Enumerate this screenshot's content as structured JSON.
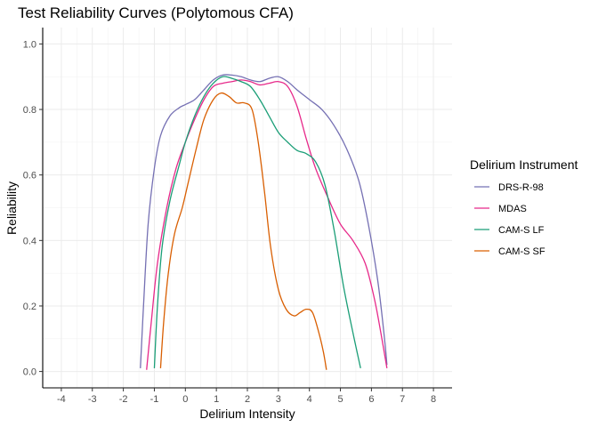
{
  "chart_data": {
    "type": "line",
    "title": "Test Reliability Curves (Polytomous CFA)",
    "xlabel": "Delirium Intensity",
    "ylabel": "Reliability",
    "xlim": [
      -4.6,
      8.6
    ],
    "ylim": [
      -0.05,
      1.05
    ],
    "xticks": [
      -4,
      -3,
      -2,
      -1,
      0,
      1,
      2,
      3,
      4,
      5,
      6,
      7,
      8
    ],
    "yticks": [
      0.0,
      0.2,
      0.4,
      0.6,
      0.8,
      1.0
    ],
    "xtick_labels": [
      "-4",
      "-3",
      "-2",
      "-1",
      "0",
      "1",
      "2",
      "3",
      "4",
      "5",
      "6",
      "7",
      "8"
    ],
    "ytick_labels": [
      "0.0",
      "0.2",
      "0.4",
      "0.6",
      "0.8",
      "1.0"
    ],
    "grid": true,
    "legend": {
      "title": "Delirium Instrument",
      "position": "right"
    },
    "series": [
      {
        "name": "DRS-R-98",
        "color": "#7570B3",
        "points": [
          [
            -1.45,
            0.01
          ],
          [
            -1.35,
            0.2
          ],
          [
            -1.2,
            0.45
          ],
          [
            -1.0,
            0.62
          ],
          [
            -0.8,
            0.72
          ],
          [
            -0.5,
            0.78
          ],
          [
            -0.2,
            0.805
          ],
          [
            0.0,
            0.815
          ],
          [
            0.3,
            0.83
          ],
          [
            0.6,
            0.86
          ],
          [
            0.9,
            0.89
          ],
          [
            1.2,
            0.905
          ],
          [
            1.5,
            0.905
          ],
          [
            1.8,
            0.9
          ],
          [
            2.1,
            0.89
          ],
          [
            2.4,
            0.885
          ],
          [
            2.7,
            0.895
          ],
          [
            3.0,
            0.9
          ],
          [
            3.3,
            0.885
          ],
          [
            3.6,
            0.86
          ],
          [
            4.0,
            0.83
          ],
          [
            4.4,
            0.8
          ],
          [
            4.8,
            0.75
          ],
          [
            5.2,
            0.68
          ],
          [
            5.6,
            0.58
          ],
          [
            5.9,
            0.45
          ],
          [
            6.2,
            0.28
          ],
          [
            6.4,
            0.12
          ],
          [
            6.5,
            0.02
          ]
        ]
      },
      {
        "name": "MDAS",
        "color": "#E7298A",
        "points": [
          [
            -1.25,
            0.005
          ],
          [
            -1.1,
            0.15
          ],
          [
            -0.9,
            0.33
          ],
          [
            -0.6,
            0.5
          ],
          [
            -0.3,
            0.62
          ],
          [
            0.0,
            0.7
          ],
          [
            0.3,
            0.77
          ],
          [
            0.6,
            0.83
          ],
          [
            0.9,
            0.87
          ],
          [
            1.2,
            0.88
          ],
          [
            1.5,
            0.885
          ],
          [
            1.8,
            0.89
          ],
          [
            2.1,
            0.885
          ],
          [
            2.4,
            0.875
          ],
          [
            2.7,
            0.88
          ],
          [
            3.0,
            0.885
          ],
          [
            3.3,
            0.87
          ],
          [
            3.6,
            0.81
          ],
          [
            3.9,
            0.71
          ],
          [
            4.2,
            0.62
          ],
          [
            4.6,
            0.53
          ],
          [
            5.0,
            0.45
          ],
          [
            5.4,
            0.4
          ],
          [
            5.8,
            0.33
          ],
          [
            6.1,
            0.22
          ],
          [
            6.3,
            0.12
          ],
          [
            6.5,
            0.01
          ]
        ]
      },
      {
        "name": "CAM-S LF",
        "color": "#1B9E77",
        "points": [
          [
            -1.0,
            0.01
          ],
          [
            -0.9,
            0.2
          ],
          [
            -0.75,
            0.38
          ],
          [
            -0.5,
            0.52
          ],
          [
            -0.2,
            0.63
          ],
          [
            0.0,
            0.7
          ],
          [
            0.3,
            0.78
          ],
          [
            0.6,
            0.84
          ],
          [
            0.9,
            0.88
          ],
          [
            1.2,
            0.9
          ],
          [
            1.5,
            0.895
          ],
          [
            1.8,
            0.885
          ],
          [
            2.1,
            0.87
          ],
          [
            2.4,
            0.83
          ],
          [
            2.7,
            0.78
          ],
          [
            3.0,
            0.73
          ],
          [
            3.3,
            0.7
          ],
          [
            3.6,
            0.675
          ],
          [
            3.9,
            0.665
          ],
          [
            4.2,
            0.64
          ],
          [
            4.5,
            0.57
          ],
          [
            4.8,
            0.43
          ],
          [
            5.1,
            0.26
          ],
          [
            5.4,
            0.12
          ],
          [
            5.65,
            0.01
          ]
        ]
      },
      {
        "name": "CAM-S SF",
        "color": "#D95F02",
        "points": [
          [
            -0.8,
            0.01
          ],
          [
            -0.7,
            0.15
          ],
          [
            -0.55,
            0.3
          ],
          [
            -0.35,
            0.42
          ],
          [
            -0.1,
            0.5
          ],
          [
            0.1,
            0.58
          ],
          [
            0.35,
            0.68
          ],
          [
            0.6,
            0.77
          ],
          [
            0.9,
            0.83
          ],
          [
            1.15,
            0.85
          ],
          [
            1.4,
            0.84
          ],
          [
            1.65,
            0.82
          ],
          [
            1.9,
            0.82
          ],
          [
            2.15,
            0.8
          ],
          [
            2.35,
            0.7
          ],
          [
            2.55,
            0.55
          ],
          [
            2.75,
            0.38
          ],
          [
            3.0,
            0.25
          ],
          [
            3.25,
            0.19
          ],
          [
            3.5,
            0.17
          ],
          [
            3.7,
            0.18
          ],
          [
            3.9,
            0.19
          ],
          [
            4.1,
            0.18
          ],
          [
            4.3,
            0.12
          ],
          [
            4.45,
            0.06
          ],
          [
            4.55,
            0.005
          ]
        ]
      }
    ]
  }
}
